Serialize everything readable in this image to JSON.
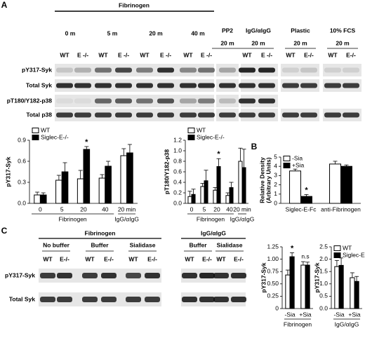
{
  "panel_a": {
    "label": "A",
    "blot": {
      "main": "Fibrinogen",
      "times": [
        "0 m",
        "5 m",
        "20 m",
        "40 m"
      ],
      "columns": [
        {
          "title": "PP2",
          "time": "20 m"
        },
        {
          "title": "IgG/αIgG",
          "time": "20 m"
        },
        {
          "title": "Plastic",
          "time": "20 m"
        },
        {
          "title": "10% FCS",
          "time": "20 m"
        }
      ],
      "lanes": [
        "WT",
        "E -/-",
        "WT",
        "E -/-",
        "WT",
        "E -/-",
        "WT",
        "E -/-",
        "WT",
        "E -/-",
        "WT",
        "E-/-",
        "WT",
        "E-/-"
      ],
      "rows": [
        "pY317-Syk",
        "Total Syk",
        "pT180/Y182-p38",
        "Total p38"
      ]
    },
    "charts": [
      {
        "type": "bar",
        "y_label": "pY317-Syk",
        "categories": [
          "0",
          "5",
          "20",
          "40",
          "20 min"
        ],
        "groups": [
          "Fibrinogen",
          "IgG/αIgG"
        ],
        "series": [
          {
            "name": "WT",
            "color": "#ffffff",
            "values": [
              0.12,
              0.33,
              0.35,
              0.36,
              0.68
            ],
            "errors": [
              0.04,
              0.07,
              0.12,
              0.05,
              0.1
            ]
          },
          {
            "name": "Siglec-E-/-",
            "color": "#000000",
            "values": [
              0.12,
              0.45,
              0.77,
              0.53,
              0.72
            ],
            "errors": [
              0.03,
              0.13,
              0.04,
              0.07,
              0.12
            ]
          }
        ],
        "ylim": [
          0,
          0.9
        ],
        "yticks": [
          {
            "value": 0,
            "label": "0.0"
          },
          0.3,
          0.6,
          0.9
        ],
        "annotations": [
          "*"
        ]
      },
      {
        "type": "bar",
        "y_label": "pT180/Y182-p38",
        "categories": [
          "0",
          "5",
          "20",
          "40",
          "20 min"
        ],
        "groups": [
          "Fibrinogen",
          "IgG/αIgG"
        ],
        "series": [
          {
            "name": "WT",
            "color": "#ffffff",
            "values": [
              0.13,
              0.32,
              0.25,
              0.15,
              0.8
            ],
            "errors": [
              0.1,
              0.06,
              0.05,
              0.05,
              0.25
            ]
          },
          {
            "name": "Siglec-E-/-",
            "color": "#000000",
            "values": [
              0.17,
              0.43,
              0.7,
              0.3,
              0.68
            ],
            "errors": [
              0.1,
              0.2,
              0.15,
              0.1,
              0.35
            ]
          }
        ],
        "ylim": [
          0,
          1.2
        ],
        "yticks": [
          {
            "value": 0,
            "label": "0.0"
          },
          0.2,
          0.4,
          0.6,
          0.8,
          {
            "value": 1,
            "label": "1.0"
          },
          1.2
        ],
        "annotations": [
          "*"
        ]
      }
    ]
  },
  "panel_b": {
    "label": "B",
    "chart": {
      "type": "bar",
      "y_label": [
        "Relative Density",
        "(Arbitrary Units)"
      ],
      "categories": [
        "Siglec-E-Fc",
        "anti-Fibrinogen"
      ],
      "series": [
        {
          "name": "-Sia",
          "color": "#ffffff",
          "values": [
            3.5,
            4.25
          ],
          "errors": [
            0.2,
            0.3
          ]
        },
        {
          "name": "+Sia",
          "color": "#000000",
          "values": [
            0.75,
            4.0
          ],
          "errors": [
            0.2,
            0.15
          ]
        }
      ],
      "ylim": [
        0,
        5
      ],
      "yticks": [
        0,
        1,
        2,
        3,
        4,
        5
      ],
      "annotations": [
        "*"
      ]
    }
  },
  "panel_c": {
    "label": "C",
    "blots": [
      {
        "main": "Fibrinogen",
        "conditions": [
          "No buffer",
          "Buffer",
          "Sialidase"
        ],
        "lanes": [
          "WT",
          "E-/-",
          "WT",
          "E-/-",
          "WT",
          "E-/-"
        ]
      },
      {
        "main": "IgG/αIgG",
        "conditions": [
          "Buffer",
          "Sialidase"
        ],
        "lanes": [
          "WT",
          "E-/-",
          "WT",
          "E-/-"
        ]
      }
    ],
    "rows": [
      "pY317-Syk",
      "Total Syk"
    ],
    "charts": [
      {
        "type": "bar",
        "y_label": "pY317-Syk",
        "categories": [
          "-Sia",
          "+Sia"
        ],
        "groups": [
          "Fibrinogen"
        ],
        "series": [
          {
            "color": "#ffffff",
            "values": [
              0.68,
              0.88
            ],
            "errors": [
              0.1,
              0.07
            ]
          },
          {
            "color": "#000000",
            "values": [
              1.05,
              0.88
            ],
            "errors": [
              0.08,
              0.06
            ]
          }
        ],
        "ylim": [
          0,
          1.25
        ],
        "yticks": [
          0,
          0.25,
          {
            "value": 0.5,
            "label": "0.50"
          },
          0.75,
          {
            "value": 1,
            "label": "1.00"
          },
          1.25
        ],
        "annotations": [
          "*",
          "n.s"
        ]
      },
      {
        "type": "bar",
        "y_label": "pY317-Syk",
        "categories": [
          "-Sia",
          "+Sia"
        ],
        "groups": [
          "IgG/αIgG"
        ],
        "series": [
          {
            "name": "WT",
            "color": "#ffffff",
            "values": [
              1.7,
              1.25
            ],
            "errors": [
              0.25,
              0.2
            ]
          },
          {
            "name": "Siglec-E-/-",
            "color": "#000000",
            "values": [
              1.75,
              1.1
            ],
            "errors": [
              0.3,
              0.2
            ]
          }
        ],
        "ylim": [
          0,
          2.5
        ],
        "yticks": [
          {
            "value": 0,
            "label": "0.0"
          },
          0.5,
          {
            "value": 1,
            "label": "1.0"
          },
          1.5,
          {
            "value": 2,
            "label": "2.0"
          },
          2.5
        ],
        "annotations": []
      }
    ]
  }
}
